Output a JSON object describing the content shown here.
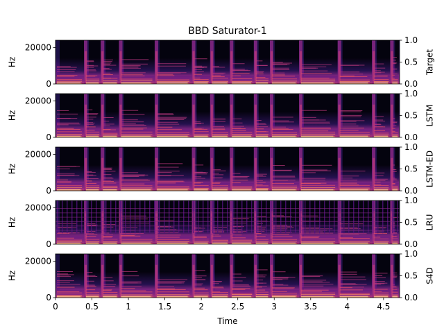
{
  "chart_data": {
    "type": "heatmap",
    "title": "BBD Saturator-1",
    "xlabel": "Time",
    "ylabel": "Hz",
    "xlim": [
      0,
      4.72
    ],
    "ylim": [
      0,
      24000
    ],
    "x_ticks": [
      "0",
      "0.5",
      "1",
      "1.5",
      "2",
      "2.5",
      "3",
      "3.5",
      "4",
      "4.5"
    ],
    "x_tick_values": [
      0,
      0.5,
      1,
      1.5,
      2,
      2.5,
      3,
      3.5,
      4,
      4.5
    ],
    "y_ticks": [
      "0",
      "20000"
    ],
    "y_tick_values": [
      0,
      20000
    ],
    "right_ticks": [
      "0.0",
      "0.5",
      "1.0"
    ],
    "right_tick_values": [
      0,
      0.5,
      1.0
    ],
    "colormap": "magma",
    "onsets": [
      0,
      0.4,
      0.63,
      0.88,
      1.37,
      1.88,
      2.13,
      2.4,
      2.73,
      2.95,
      3.35,
      3.88,
      4.35,
      4.6
    ],
    "panels": [
      {
        "name": "Target"
      },
      {
        "name": "LSTM"
      },
      {
        "name": "LSTM-ED"
      },
      {
        "name": "LRU"
      },
      {
        "name": "S4D"
      }
    ]
  },
  "colors": {
    "magma": [
      "#000004",
      "#1d1147",
      "#51127c",
      "#822681",
      "#b73779",
      "#e75263",
      "#fc8961",
      "#fec488",
      "#fcfdbf"
    ]
  }
}
